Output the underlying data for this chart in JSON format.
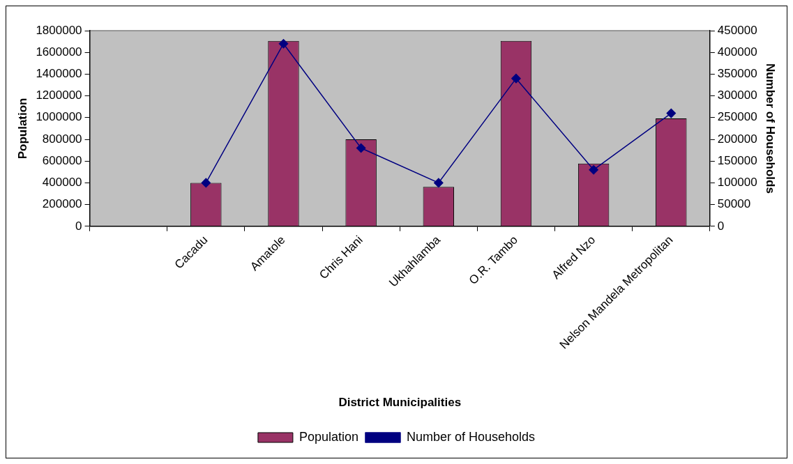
{
  "chart_data": {
    "type": "bar",
    "xlabel": "District Municipalities",
    "ylabel": "Population",
    "y2label": "Number of Households",
    "categories": [
      null,
      "Cacadu",
      "Amatole",
      "Chris Hani",
      "Ukhahlamba",
      "O.R. Tambo",
      "Alfred Nzo",
      "Nelson Mandela Metropolitan"
    ],
    "series": [
      {
        "name": "Population",
        "color": "#993366",
        "values": [
          null,
          400000,
          1705000,
          800000,
          362000,
          1705000,
          578000,
          992000
        ]
      },
      {
        "name": "Number of Households",
        "type": "line",
        "axis": "y2",
        "color": "#000080",
        "values": [
          null,
          100000,
          420000,
          180000,
          100000,
          340000,
          130000,
          260000
        ]
      }
    ],
    "ylim": [
      0,
      1800000
    ],
    "yticks": [
      0,
      200000,
      400000,
      600000,
      800000,
      1000000,
      1200000,
      1400000,
      1600000,
      1800000
    ],
    "y2lim": [
      0,
      450000
    ],
    "y2ticks": [
      0,
      50000,
      100000,
      150000,
      200000,
      250000,
      300000,
      350000,
      400000,
      450000
    ],
    "grid": false,
    "legend": "bottom",
    "marker": "diamond",
    "line_style": "solid"
  }
}
